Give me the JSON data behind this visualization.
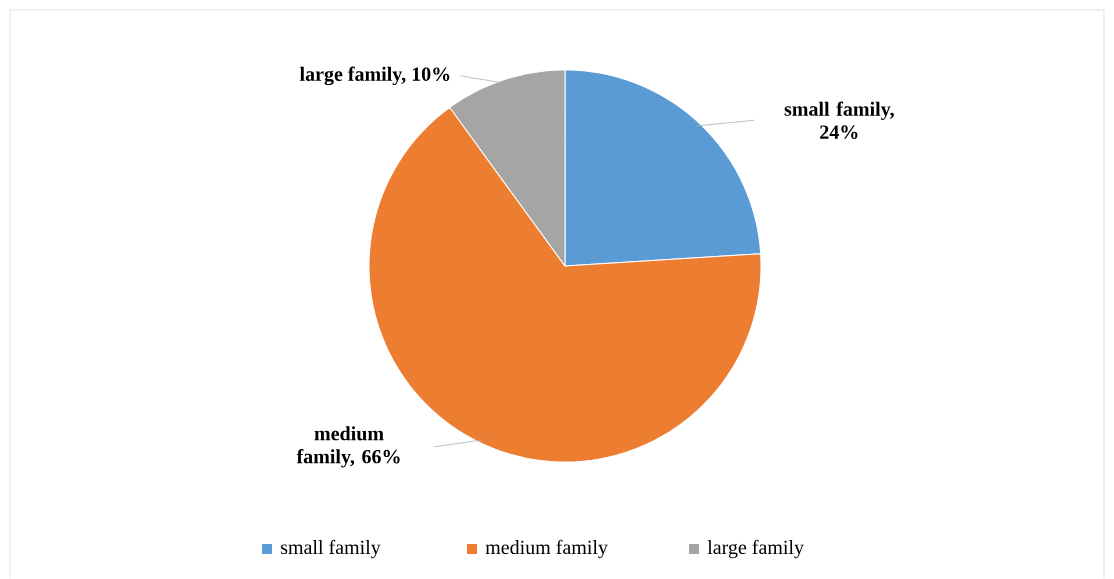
{
  "chart_data": {
    "type": "pie",
    "categories": [
      "small family",
      "medium family",
      "large family"
    ],
    "values": [
      24,
      66,
      10
    ],
    "value_labels": [
      "small family, 24%",
      "medium family, 66%",
      "large family, 10%"
    ],
    "colors": [
      "#5b9bd5",
      "#ed7d31",
      "#a5a5a5"
    ],
    "legend": "bottom"
  }
}
